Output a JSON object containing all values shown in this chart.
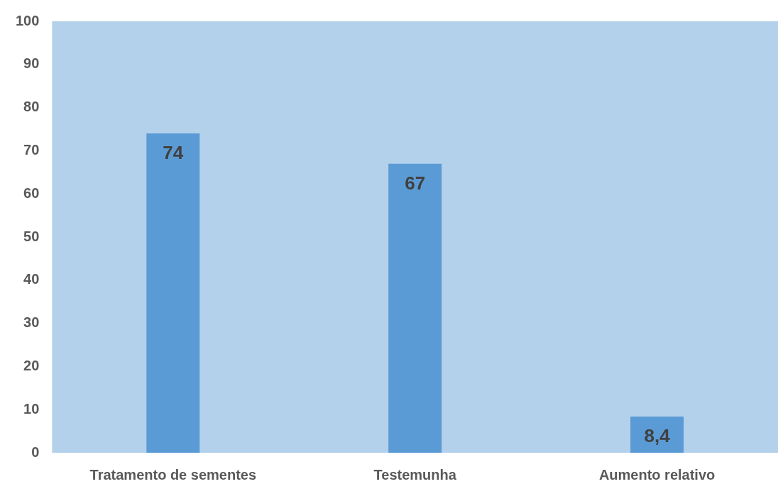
{
  "chart_data": {
    "type": "bar",
    "categories": [
      "Tratamento de sementes",
      "Testemunha",
      "Aumento relativo"
    ],
    "values": [
      74,
      67,
      8.4
    ],
    "value_labels": [
      "74",
      "67",
      "8,4"
    ],
    "color": "#5b9bd5",
    "ylim": [
      0,
      100
    ],
    "yticks": [
      0,
      10,
      20,
      30,
      40,
      50,
      60,
      70,
      80,
      90,
      100
    ],
    "grid": false,
    "legend": false
  }
}
